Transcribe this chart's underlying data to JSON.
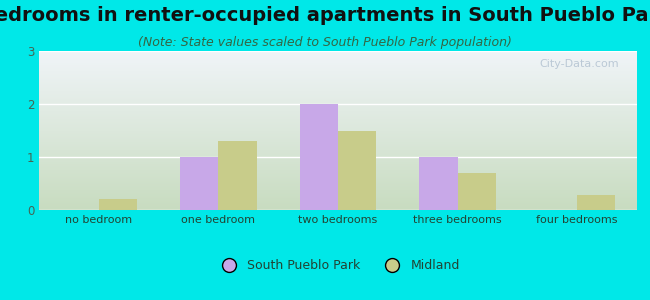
{
  "title": "Bedrooms in renter-occupied apartments in South Pueblo Park",
  "subtitle": "(Note: State values scaled to South Pueblo Park population)",
  "categories": [
    "no bedroom",
    "one bedroom",
    "two bedrooms",
    "three bedrooms",
    "four bedrooms"
  ],
  "south_pueblo_park": [
    0,
    1.0,
    2.0,
    1.0,
    0
  ],
  "midland": [
    0.2,
    1.3,
    1.5,
    0.7,
    0.28
  ],
  "bar_color_spk": "#c8a8e8",
  "bar_color_mid": "#c8cc8a",
  "background_outer": "#00e8e8",
  "background_plot_topleft": "#ddeedd",
  "background_plot_topright": "#e8f0f8",
  "background_plot_bottom": "#d0e8c8",
  "ylim": [
    0,
    3
  ],
  "yticks": [
    0,
    1,
    2,
    3
  ],
  "legend_label_spk": "South Pueblo Park",
  "legend_label_mid": "Midland",
  "title_fontsize": 14,
  "subtitle_fontsize": 9,
  "watermark": "City-Data.com",
  "grid_color": "#ffffff",
  "tick_color": "#446655",
  "label_color": "#224433"
}
